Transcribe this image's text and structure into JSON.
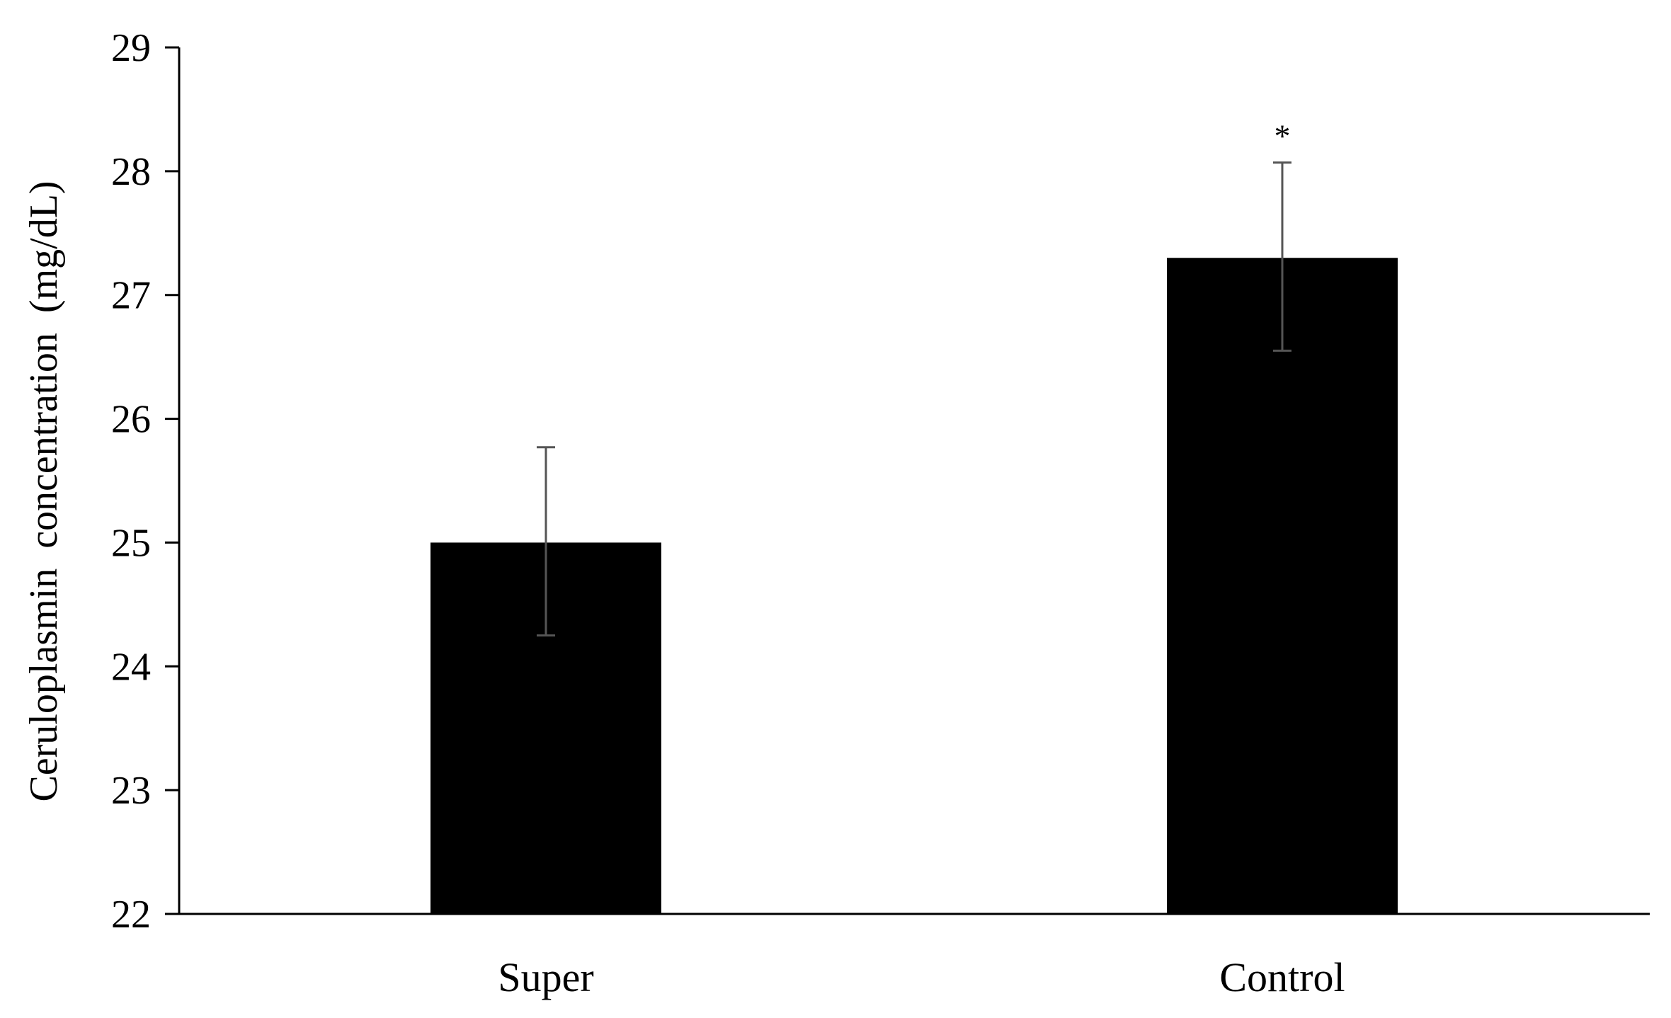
{
  "chart_data": {
    "type": "bar",
    "title": "",
    "xlabel": "",
    "ylabel": "Ceruloplasmin  concentration  (mg/dL)",
    "ylim": [
      22,
      29
    ],
    "yticks": [
      "22",
      "23",
      "24",
      "25",
      "26",
      "27",
      "28",
      "29"
    ],
    "categories": [
      "Super",
      "Control"
    ],
    "values": [
      25.0,
      27.3
    ],
    "error_low": [
      24.25,
      26.55
    ],
    "error_high": [
      25.77,
      28.07
    ],
    "annotations": [
      "",
      "*"
    ],
    "grid": false,
    "legend": "none",
    "bar_color": "#000000",
    "axis_color": "#000000",
    "errorbar_color": "#555555"
  }
}
